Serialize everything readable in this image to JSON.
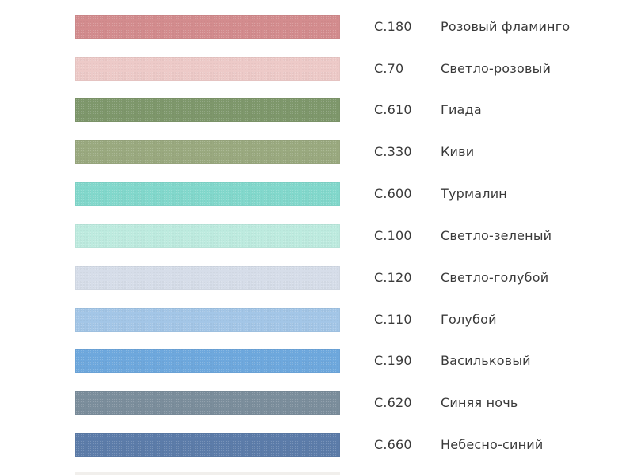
{
  "swatches": [
    {
      "code": "C.180",
      "name": "Розовый фламинго",
      "color": "#d38c8e"
    },
    {
      "code": "C.70",
      "name": "Светло-розовый",
      "color": "#edcac8"
    },
    {
      "code": "C.610",
      "name": "Гиада",
      "color": "#7e976b"
    },
    {
      "code": "C.330",
      "name": "Киви",
      "color": "#9aa97f"
    },
    {
      "code": "C.600",
      "name": "Турмалин",
      "color": "#82d8cc"
    },
    {
      "code": "C.100",
      "name": "Светло-зеленый",
      "color": "#bdebdf"
    },
    {
      "code": "C.120",
      "name": "Светло-голубой",
      "color": "#d6dde9"
    },
    {
      "code": "C.110",
      "name": "Голубой",
      "color": "#a3c6e7"
    },
    {
      "code": "C.190",
      "name": "Васильковый",
      "color": "#6ea8dd"
    },
    {
      "code": "C.620",
      "name": "Синяя ночь",
      "color": "#7b8e9c"
    },
    {
      "code": "C.660",
      "name": "Небесно-синий",
      "color": "#5c7ca9"
    }
  ]
}
